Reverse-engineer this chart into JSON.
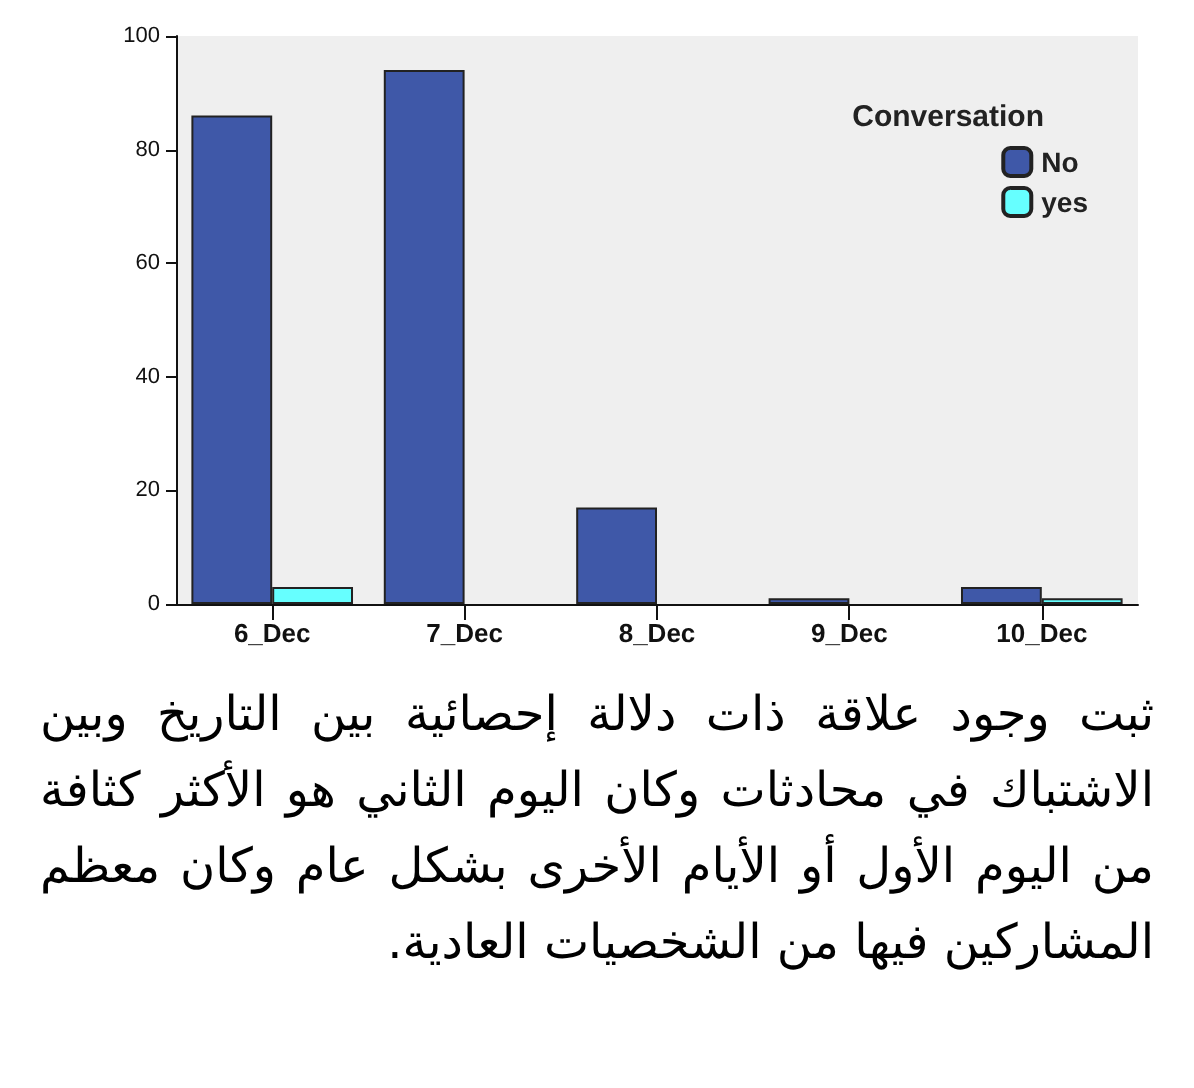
{
  "chart_data": {
    "type": "bar",
    "categories": [
      "6_Dec",
      "7_Dec",
      "8_Dec",
      "9_Dec",
      "10_Dec"
    ],
    "series": [
      {
        "name": "No",
        "color": "#3f58a8",
        "values": [
          86,
          94,
          17,
          1,
          3
        ]
      },
      {
        "name": "yes",
        "color": "#66ffff",
        "values": [
          3,
          null,
          null,
          null,
          1
        ]
      }
    ],
    "legend_title": "Conversation",
    "legend": "top right",
    "grid": false,
    "ylim": [
      0,
      100
    ],
    "yticks": [
      0,
      20,
      40,
      60,
      80,
      100
    ],
    "annotations": [
      "ثبت وجود علاقة ذات دلالة إحصائية بين التاريخ وبين الاشتباك في محادثات وكان اليوم الثاني هو الأكثر كثافة من اليوم الأول أو الأيام الأخرى بشكل عام وكان معظم المشاركين فيها من الشخصيات العادية."
    ]
  }
}
